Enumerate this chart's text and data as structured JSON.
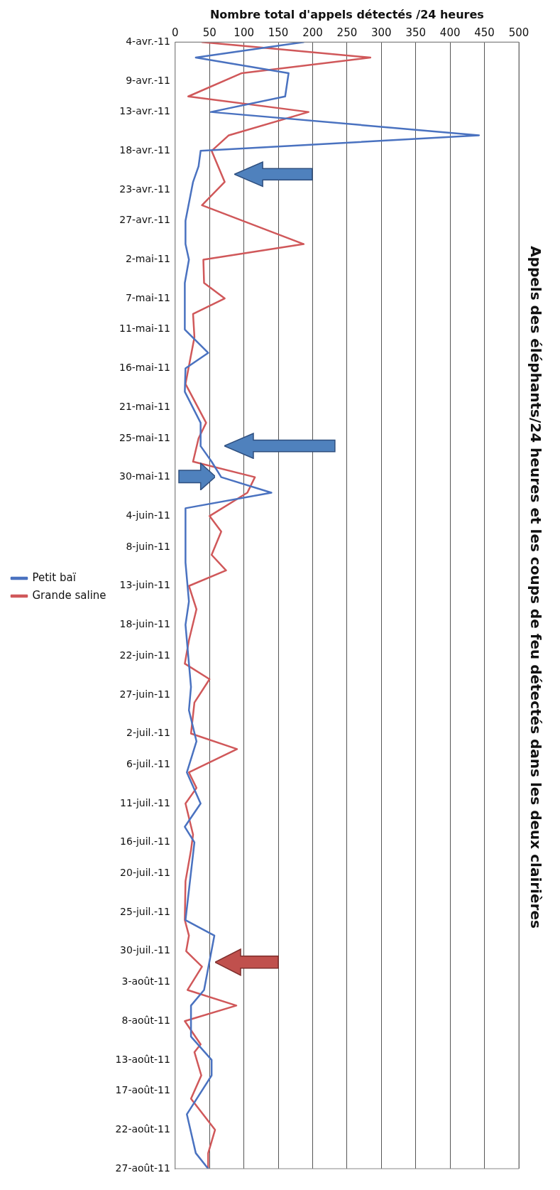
{
  "chart_data": {
    "type": "line",
    "title": "Appels des éléphants/24 heures et les coups de feu détectés dans les deux clairières",
    "xlabel": "Nombre total d'appels détectés /24 heures",
    "orientation": "horizontal",
    "legend": "left",
    "grid": "x",
    "xlim": [
      0,
      500
    ],
    "ylim": [
      "--08-27",
      "--04-04"
    ],
    "xticks": [
      0,
      50,
      100,
      150,
      200,
      250,
      300,
      350,
      400,
      450,
      500
    ],
    "yticks": [
      {
        "value": "--04-04",
        "label": "4-avr.-11"
      },
      {
        "value": "--04-09",
        "label": "9-avr.-11"
      },
      {
        "value": "--04-13",
        "label": "13-avr.-11"
      },
      {
        "value": "--04-18",
        "label": "18-avr.-11"
      },
      {
        "value": "--04-23",
        "label": "23-avr.-11"
      },
      {
        "value": "--04-27",
        "label": "27-avr.-11"
      },
      {
        "value": "--05-02",
        "label": "2-mai-11"
      },
      {
        "value": "--05-07",
        "label": "7-mai-11"
      },
      {
        "value": "--05-11",
        "label": "11-mai-11"
      },
      {
        "value": "--05-16",
        "label": "16-mai-11"
      },
      {
        "value": "--05-21",
        "label": "21-mai-11"
      },
      {
        "value": "--05-25",
        "label": "25-mai-11"
      },
      {
        "value": "--05-30",
        "label": "30-mai-11"
      },
      {
        "value": "--06-04",
        "label": "4-juin-11"
      },
      {
        "value": "--06-08",
        "label": "8-juin-11"
      },
      {
        "value": "--06-13",
        "label": "13-juin-11"
      },
      {
        "value": "--06-18",
        "label": "18-juin-11"
      },
      {
        "value": "--06-22",
        "label": "22-juin-11"
      },
      {
        "value": "--06-27",
        "label": "27-juin-11"
      },
      {
        "value": "--07-02",
        "label": "2-juil.-11"
      },
      {
        "value": "--07-06",
        "label": "6-juil.-11"
      },
      {
        "value": "--07-11",
        "label": "11-juil.-11"
      },
      {
        "value": "--07-16",
        "label": "16-juil.-11"
      },
      {
        "value": "--07-20",
        "label": "20-juil.-11"
      },
      {
        "value": "--07-25",
        "label": "25-juil.-11"
      },
      {
        "value": "--07-30",
        "label": "30-juil.-11"
      },
      {
        "value": "--08-03",
        "label": "3-août-11"
      },
      {
        "value": "--08-08",
        "label": "8-août-11"
      },
      {
        "value": "--08-13",
        "label": "13-août-11"
      },
      {
        "value": "--08-17",
        "label": "17-août-11"
      },
      {
        "value": "--08-22",
        "label": "22-août-11"
      },
      {
        "value": "--08-27",
        "label": "27-août-11"
      }
    ],
    "series": [
      {
        "name": "Petit baï",
        "color": "#4a72c0",
        "x": [
          "--04-04",
          "--04-06",
          "--04-08",
          "--04-11",
          "--04-13",
          "--04-16",
          "--04-18",
          "--04-20",
          "--04-22",
          "--04-27",
          "--04-30",
          "--05-02",
          "--05-05",
          "--05-11",
          "--05-14",
          "--05-16",
          "--05-19",
          "--05-23",
          "--05-26",
          "--05-28",
          "--05-30",
          "--06-01",
          "--06-03",
          "--06-10",
          "--06-15",
          "--06-18",
          "--06-26",
          "--06-29",
          "--07-03",
          "--07-07",
          "--07-11",
          "--07-14",
          "--07-16",
          "--07-26",
          "--07-28",
          "--08-04",
          "--08-06",
          "--08-10",
          "--08-13",
          "--08-15",
          "--08-20",
          "--08-25",
          "--08-27"
        ],
        "values": [
          187,
          30,
          165,
          160,
          52,
          442,
          37,
          34,
          26,
          15,
          15,
          20,
          14,
          14,
          48,
          15,
          14,
          37,
          37,
          53,
          67,
          140,
          15,
          15,
          20,
          15,
          23,
          20,
          31,
          17,
          37,
          14,
          28,
          15,
          57,
          42,
          23,
          23,
          53,
          53,
          17,
          30,
          48
        ]
      },
      {
        "name": "Grande saline",
        "color": "#d0585a",
        "x": [
          "--04-04",
          "--04-06",
          "--04-08",
          "--04-11",
          "--04-13",
          "--04-16",
          "--04-18",
          "--04-22",
          "--04-25",
          "--04-30",
          "--05-02",
          "--05-05",
          "--05-07",
          "--05-09",
          "--05-12",
          "--05-18",
          "--05-23",
          "--05-25",
          "--05-28",
          "--05-30",
          "--06-01",
          "--06-04",
          "--06-06",
          "--06-09",
          "--06-11",
          "--06-13",
          "--06-16",
          "--06-20",
          "--06-23",
          "--06-25",
          "--06-28",
          "--07-02",
          "--07-04",
          "--07-07",
          "--07-09",
          "--07-11",
          "--07-15",
          "--07-17",
          "--07-21",
          "--07-26",
          "--07-28",
          "--07-30",
          "--08-01",
          "--08-04",
          "--08-06",
          "--08-08",
          "--08-11",
          "--08-12",
          "--08-15",
          "--08-18",
          "--08-22",
          "--08-25",
          "--08-27"
        ],
        "values": [
          39,
          284,
          97,
          19,
          194,
          78,
          53,
          72,
          39,
          187,
          41,
          42,
          72,
          26,
          28,
          15,
          45,
          34,
          26,
          116,
          105,
          50,
          67,
          53,
          74,
          20,
          31,
          20,
          14,
          50,
          28,
          23,
          90,
          20,
          31,
          15,
          26,
          23,
          15,
          14,
          20,
          16,
          39,
          18,
          89,
          14,
          37,
          28,
          38,
          23,
          58,
          48,
          48
        ]
      }
    ]
  }
}
